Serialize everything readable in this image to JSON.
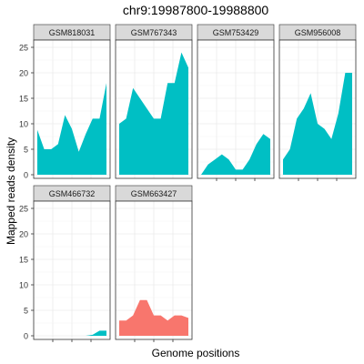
{
  "chart_data": {
    "type": "area",
    "title": "chr9:19987800-19988800",
    "xlabel": "Genome positions",
    "ylabel": "Mapped reads density",
    "ylim": [
      0,
      25
    ],
    "yticks": [
      0,
      5,
      10,
      15,
      20,
      25
    ],
    "grid": true,
    "layout": "facet-wrap",
    "colors": {
      "default": "#00BFC4",
      "highlight": "#F8766D",
      "strip_bg": "#d9d9d9",
      "panel_border": "#333333",
      "grid": "#ebebeb"
    },
    "panels": [
      {
        "name": "GSM818031",
        "color": "#00BFC4",
        "values": [
          8.8,
          5,
          5,
          6,
          11.7,
          9,
          4.5,
          8,
          11,
          11,
          18
        ]
      },
      {
        "name": "GSM767343",
        "color": "#00BFC4",
        "values": [
          10,
          11,
          17,
          15,
          13,
          11,
          11,
          18,
          18,
          24,
          21
        ]
      },
      {
        "name": "GSM753429",
        "color": "#00BFC4",
        "values": [
          0,
          2,
          3,
          4,
          3,
          1,
          1,
          3,
          6,
          8,
          7
        ]
      },
      {
        "name": "GSM956008",
        "color": "#00BFC4",
        "values": [
          3,
          5,
          11,
          13,
          16,
          10,
          9,
          7,
          12,
          20,
          20
        ]
      },
      {
        "name": "GSM466732",
        "color": "#00BFC4",
        "values": [
          0,
          0,
          0,
          0,
          0,
          0,
          0,
          0,
          0.2,
          1,
          1
        ]
      },
      {
        "name": "GSM663427",
        "color": "#F8766D",
        "values": [
          3,
          3,
          4,
          7,
          7,
          4,
          4,
          3,
          4,
          4,
          3.5
        ]
      }
    ]
  }
}
